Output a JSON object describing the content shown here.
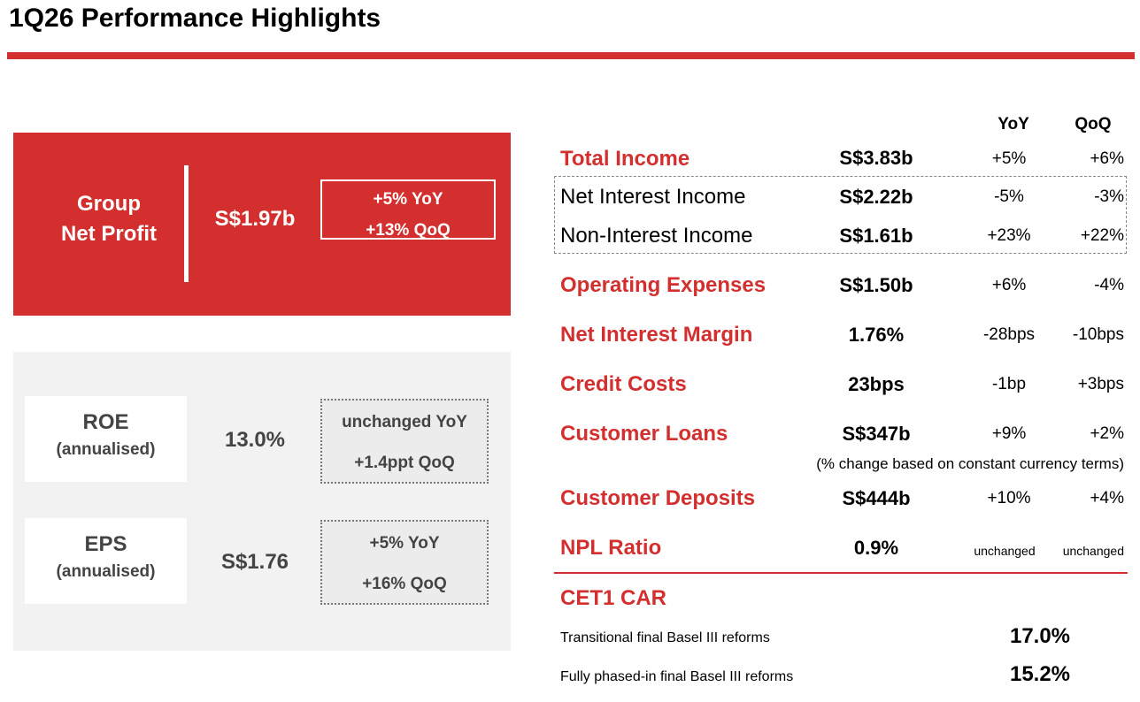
{
  "title": "1Q26 Performance Highlights",
  "accent_color": "#d32f2f",
  "net_profit": {
    "label_line1": "Group",
    "label_line2": "Net Profit",
    "value": "S$1.97b",
    "yoy": "+5% YoY",
    "qoq": "+13% QoQ"
  },
  "roe": {
    "label": "ROE",
    "sublabel": "(annualised)",
    "value": "13.0%",
    "yoy": "unchanged YoY",
    "qoq": "+1.4ppt QoQ"
  },
  "eps": {
    "label": "EPS",
    "sublabel": "(annualised)",
    "value": "S$1.76",
    "yoy": "+5% YoY",
    "qoq": "+16% QoQ"
  },
  "table": {
    "header_yoy": "YoY",
    "header_qoq": "QoQ",
    "rows": [
      {
        "label": "Total Income",
        "value": "S$3.83b",
        "yoy": "+5%",
        "qoq": "+6%"
      },
      {
        "label": "Net Interest Income",
        "value": "S$2.22b",
        "yoy": "-5%",
        "qoq": "-3%"
      },
      {
        "label": "Non-Interest Income",
        "value": "S$1.61b",
        "yoy": "+23%",
        "qoq": "+22%"
      },
      {
        "label": "Operating Expenses",
        "value": "S$1.50b",
        "yoy": "+6%",
        "qoq": "-4%"
      },
      {
        "label": "Net Interest Margin",
        "value": "1.76%",
        "yoy": "-28bps",
        "qoq": "-10bps"
      },
      {
        "label": "Credit Costs",
        "value": "23bps",
        "yoy": "-1bp",
        "qoq": "+3bps"
      },
      {
        "label": "Customer Loans",
        "value": "S$347b",
        "yoy": "+9%",
        "qoq": "+2%"
      },
      {
        "label": "Customer Deposits",
        "value": "S$444b",
        "yoy": "+10%",
        "qoq": "+4%"
      },
      {
        "label": "NPL Ratio",
        "value": "0.9%",
        "yoy": "unchanged",
        "qoq": "unchanged"
      }
    ],
    "loans_note": "(% change based on constant currency terms)"
  },
  "cet1": {
    "title": "CET1 CAR",
    "rows": [
      {
        "label": "Transitional final Basel III reforms",
        "value": "17.0%"
      },
      {
        "label": "Fully phased-in final Basel III reforms",
        "value": "15.2%"
      }
    ]
  }
}
